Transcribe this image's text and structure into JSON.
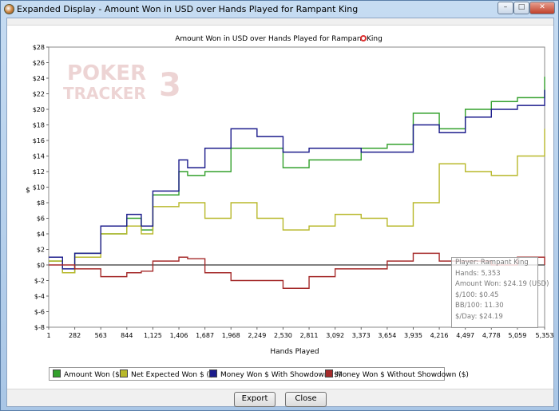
{
  "window": {
    "title": "Expanded Display - Amount Won in USD over Hands Played for Rampant King",
    "minimize": "–",
    "maximize": "□",
    "close": "✕"
  },
  "buttons": {
    "export": "Export",
    "close": "Close"
  },
  "watermark": {
    "line1": "POKER",
    "line2": "TRACKER",
    "number": "3"
  },
  "tooltip": {
    "player": "Player: Rampant King",
    "hands": "Hands: 5,353",
    "amount_won": "Amount Won: $24.19 (USD)",
    "per100": "$/100: $0.45",
    "bb100": "BB/100: 11.30",
    "perday": "$/Day: $24.19"
  },
  "chart_data": {
    "type": "line",
    "title": "Amount Won in USD over Hands Played for Rampant King",
    "xlabel": "Hands Played",
    "ylabel": "$",
    "xlim": [
      1,
      5353
    ],
    "ylim": [
      -8,
      28
    ],
    "x_ticks": [
      "1",
      "282",
      "563",
      "844",
      "1,125",
      "1,406",
      "1,687",
      "1,968",
      "2,249",
      "2,530",
      "2,811",
      "3,092",
      "3,373",
      "3,654",
      "3,935",
      "4,216",
      "4,497",
      "4,778",
      "5,059",
      "5,353"
    ],
    "y_ticks": [
      "$28",
      "$26",
      "$24",
      "$22",
      "$20",
      "$18",
      "$16",
      "$14",
      "$12",
      "$10",
      "$8",
      "$6",
      "$4",
      "$2",
      "$0",
      "$-2",
      "$-4",
      "$-6",
      "$-8"
    ],
    "x": [
      1,
      150,
      282,
      563,
      844,
      1000,
      1125,
      1406,
      1500,
      1687,
      1968,
      2249,
      2530,
      2811,
      3092,
      3373,
      3654,
      3935,
      4216,
      4497,
      4778,
      5059,
      5353
    ],
    "series": [
      {
        "name": "Amount Won ($)",
        "color": "#33a02c",
        "values": [
          0.5,
          -1.0,
          1.5,
          4.0,
          6.0,
          4.5,
          9.0,
          12.0,
          11.5,
          12.0,
          15.0,
          15.0,
          12.5,
          13.5,
          13.5,
          15.0,
          15.5,
          19.5,
          17.5,
          20.0,
          21.0,
          21.5,
          24.19
        ]
      },
      {
        "name": "Net Expected Won $ ($)",
        "color": "#b8b82a",
        "values": [
          0.5,
          -1.0,
          1.0,
          4.0,
          5.0,
          4.0,
          7.5,
          8.0,
          8.0,
          6.0,
          8.0,
          6.0,
          4.5,
          5.0,
          6.5,
          6.0,
          5.0,
          8.0,
          13.0,
          12.0,
          11.5,
          14.0,
          17.5
        ]
      },
      {
        "name": "Money Won $ With Showdown ($)",
        "color": "#1c1c8c",
        "values": [
          1.0,
          -0.5,
          1.5,
          5.0,
          6.5,
          5.0,
          9.5,
          13.5,
          12.5,
          15.0,
          17.5,
          16.5,
          14.5,
          15.0,
          15.0,
          14.5,
          14.5,
          18.0,
          17.0,
          19.0,
          20.0,
          20.5,
          22.5
        ]
      },
      {
        "name": "Money Won $ Without Showdown ($)",
        "color": "#a52a2a",
        "values": [
          0,
          0,
          -0.5,
          -1.5,
          -1.0,
          -0.8,
          0.5,
          1.0,
          0.8,
          -1.0,
          -2.0,
          -2.0,
          -3.0,
          -1.5,
          -0.5,
          -0.5,
          0.5,
          1.5,
          0.5,
          0.5,
          0,
          1.0,
          0
        ]
      }
    ],
    "grid": false,
    "legend_position": "bottom-left"
  }
}
